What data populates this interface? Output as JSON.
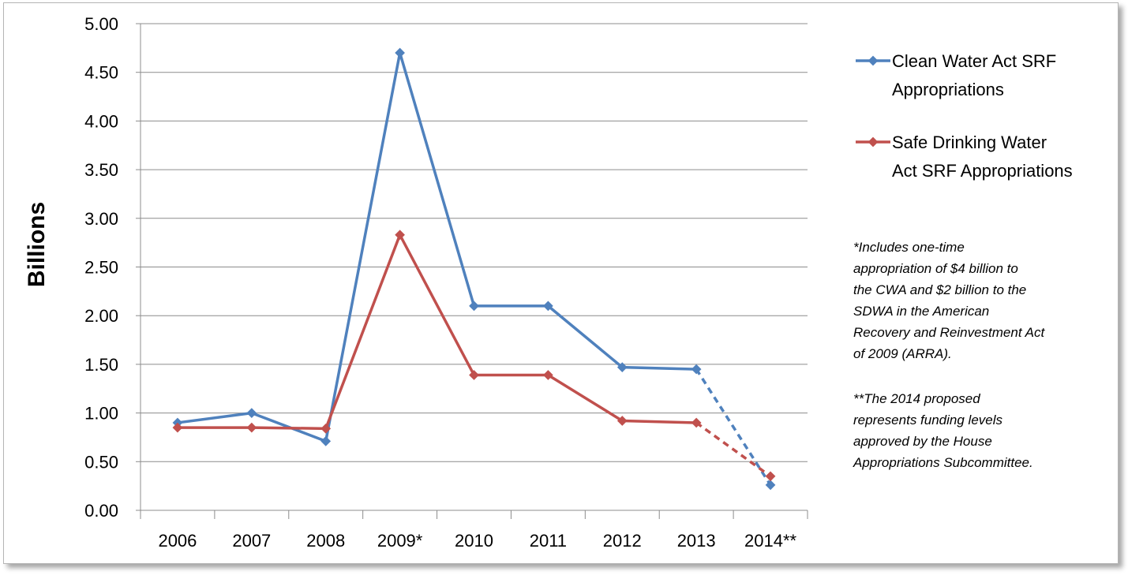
{
  "chart_data": {
    "type": "line",
    "ylabel": "Billions",
    "ylim": [
      0,
      5
    ],
    "yticks": [
      "0.00",
      "0.50",
      "1.00",
      "1.50",
      "2.00",
      "2.50",
      "3.00",
      "3.50",
      "4.00",
      "4.50",
      "5.00"
    ],
    "categories": [
      "2006",
      "2007",
      "2008",
      "2009*",
      "2010",
      "2011",
      "2012",
      "2013",
      "2014**"
    ],
    "grid": true,
    "legend_position": "right",
    "series": [
      {
        "name": "Clean Water Act SRF Appropriations",
        "legend_lines": [
          "Clean Water Act SRF",
          "Appropriations"
        ],
        "color": "#4F81BD",
        "values": [
          0.9,
          1.0,
          0.71,
          4.7,
          2.1,
          2.1,
          1.47,
          1.45,
          0.26
        ],
        "dashed_last_segment": true
      },
      {
        "name": "Safe Drinking Water Act SRF Appropriations",
        "legend_lines": [
          "Safe Drinking Water",
          "Act SRF Appropriations"
        ],
        "color": "#C0504D",
        "values": [
          0.85,
          0.85,
          0.84,
          2.83,
          1.39,
          1.39,
          0.92,
          0.9,
          0.35
        ],
        "dashed_last_segment": true
      }
    ],
    "annotations": [
      [
        "*Includes one-time",
        "appropriation of $4 billion to",
        "the CWA and $2 billion to the",
        "SDWA in the American",
        "Recovery and Reinvestment Act",
        "of 2009 (ARRA)."
      ],
      [
        "**The 2014 proposed",
        "represents funding levels",
        "approved by the House",
        "Appropriations Subcommittee."
      ]
    ]
  }
}
